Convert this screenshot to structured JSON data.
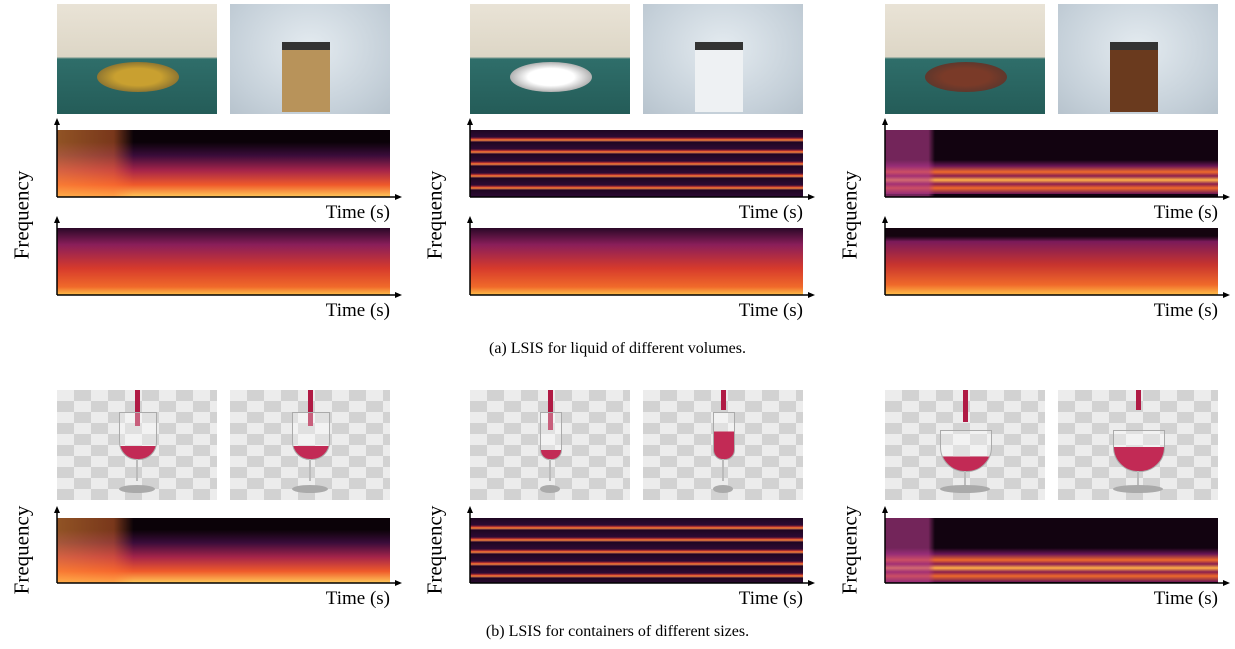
{
  "panel_a": {
    "caption": "(a) LSIS for liquid of different volumes.",
    "columns": [
      {
        "y_label": "Frequency",
        "x_labels": [
          "Time (s)",
          "Time (s)"
        ]
      },
      {
        "y_label": "Frequency",
        "x_labels": [
          "Time (s)",
          "Time (s)"
        ]
      },
      {
        "y_label": "Frequency",
        "x_labels": [
          "Time (s)",
          "Time (s)"
        ]
      }
    ]
  },
  "panel_b": {
    "caption": "(b) LSIS for containers of different sizes.",
    "columns": [
      {
        "y_label": "Frequency",
        "x_labels": [
          "Time (s)"
        ]
      },
      {
        "y_label": "Frequency",
        "x_labels": [
          "Time (s)"
        ]
      },
      {
        "y_label": "Frequency",
        "x_labels": [
          "Time (s)"
        ]
      }
    ]
  }
}
